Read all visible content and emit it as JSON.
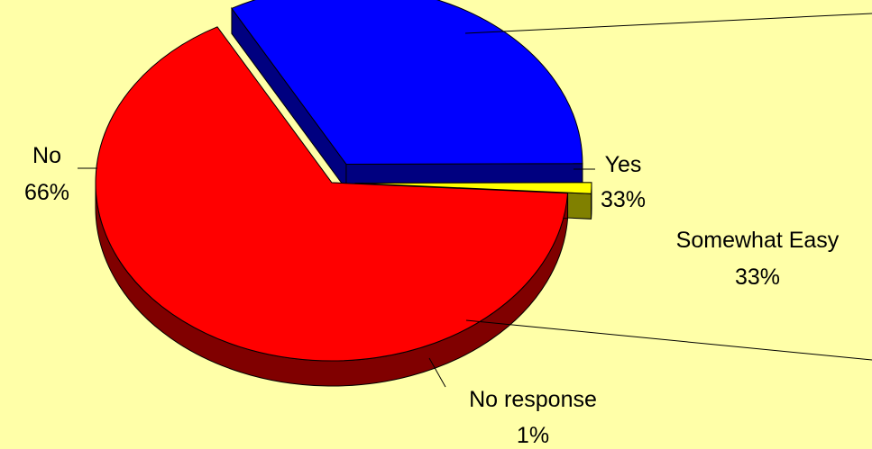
{
  "chart_data": {
    "type": "pie",
    "title": "",
    "three_d": true,
    "slices": [
      {
        "label": "Yes",
        "value": 33,
        "value_label": "33%",
        "color": "#0000FF",
        "side_color": "#000080",
        "exploded": true
      },
      {
        "label": "No response",
        "value": 1,
        "value_label": "1%",
        "color": "#FFFF00",
        "side_color": "#808000",
        "exploded": true
      },
      {
        "label": "No",
        "value": 66,
        "value_label": "66%",
        "color": "#FF0000",
        "side_color": "#800000",
        "exploded": false
      }
    ],
    "breakout": {
      "label": "Somewhat Easy",
      "value_label": "33%"
    },
    "background_color": "#FFFFA8"
  }
}
